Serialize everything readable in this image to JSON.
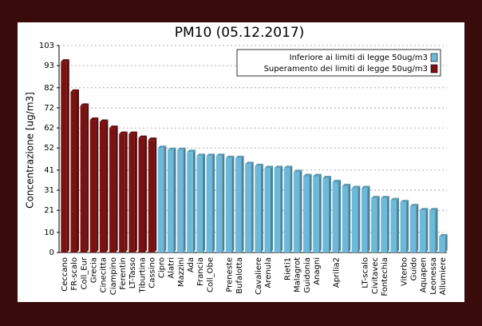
{
  "chart_data": {
    "type": "bar",
    "title": "PM10 (05.12.2017)",
    "y_label": "Concentrazione [ug/m3]",
    "categories": [
      "Ceccano",
      "FR-scalo",
      "Coll_Eur",
      "Grecia",
      "Cinecitta",
      "Ciampino",
      "Ferentin",
      "LT-Tasso",
      "Tiburtina",
      "Cassino",
      "Cipro",
      "Alatri",
      "Mazzini",
      "Ada",
      "Francia",
      "Coll_Obe",
      null,
      "Preneste",
      "Bufalotta",
      null,
      "Cavaliere",
      "Arenula",
      null,
      "Rieti1",
      "Malagrot",
      "Guidonia",
      "Anagni",
      null,
      "Aprilia2",
      null,
      null,
      "LT-scalo",
      "Civitavec",
      "Fontechia",
      null,
      "Viterbo",
      "Guido",
      "Aquapen",
      "Leonessa",
      "Allumiere"
    ],
    "series": [
      {
        "name": "Inferiore ai limiti di legge 50ug/m3",
        "color": "#6cb9d9",
        "values": [
          null,
          null,
          null,
          null,
          null,
          null,
          null,
          null,
          null,
          null,
          52,
          51,
          51,
          50,
          48,
          48,
          48,
          47,
          47,
          44,
          43,
          42,
          42,
          42,
          40,
          38,
          38,
          37,
          35,
          33,
          32,
          32,
          27,
          27,
          26,
          25,
          23,
          21,
          21,
          8
        ]
      },
      {
        "name": "Superamento dei limiti di legge 50ug/m3",
        "color": "#7b1212",
        "values": [
          95,
          80,
          73,
          66,
          65,
          62,
          59,
          59,
          57,
          56,
          null,
          null,
          null,
          null,
          null,
          null,
          null,
          null,
          null,
          null,
          null,
          null,
          null,
          null,
          null,
          null,
          null,
          null,
          null,
          null,
          null,
          null,
          null,
          null,
          null,
          null,
          null,
          null,
          null,
          null
        ]
      }
    ],
    "ylim": [
      0,
      103
    ],
    "yticks": [
      0,
      10,
      21,
      31,
      41,
      52,
      62,
      72,
      82,
      93,
      103
    ],
    "grid": true,
    "legend": "top-right"
  }
}
